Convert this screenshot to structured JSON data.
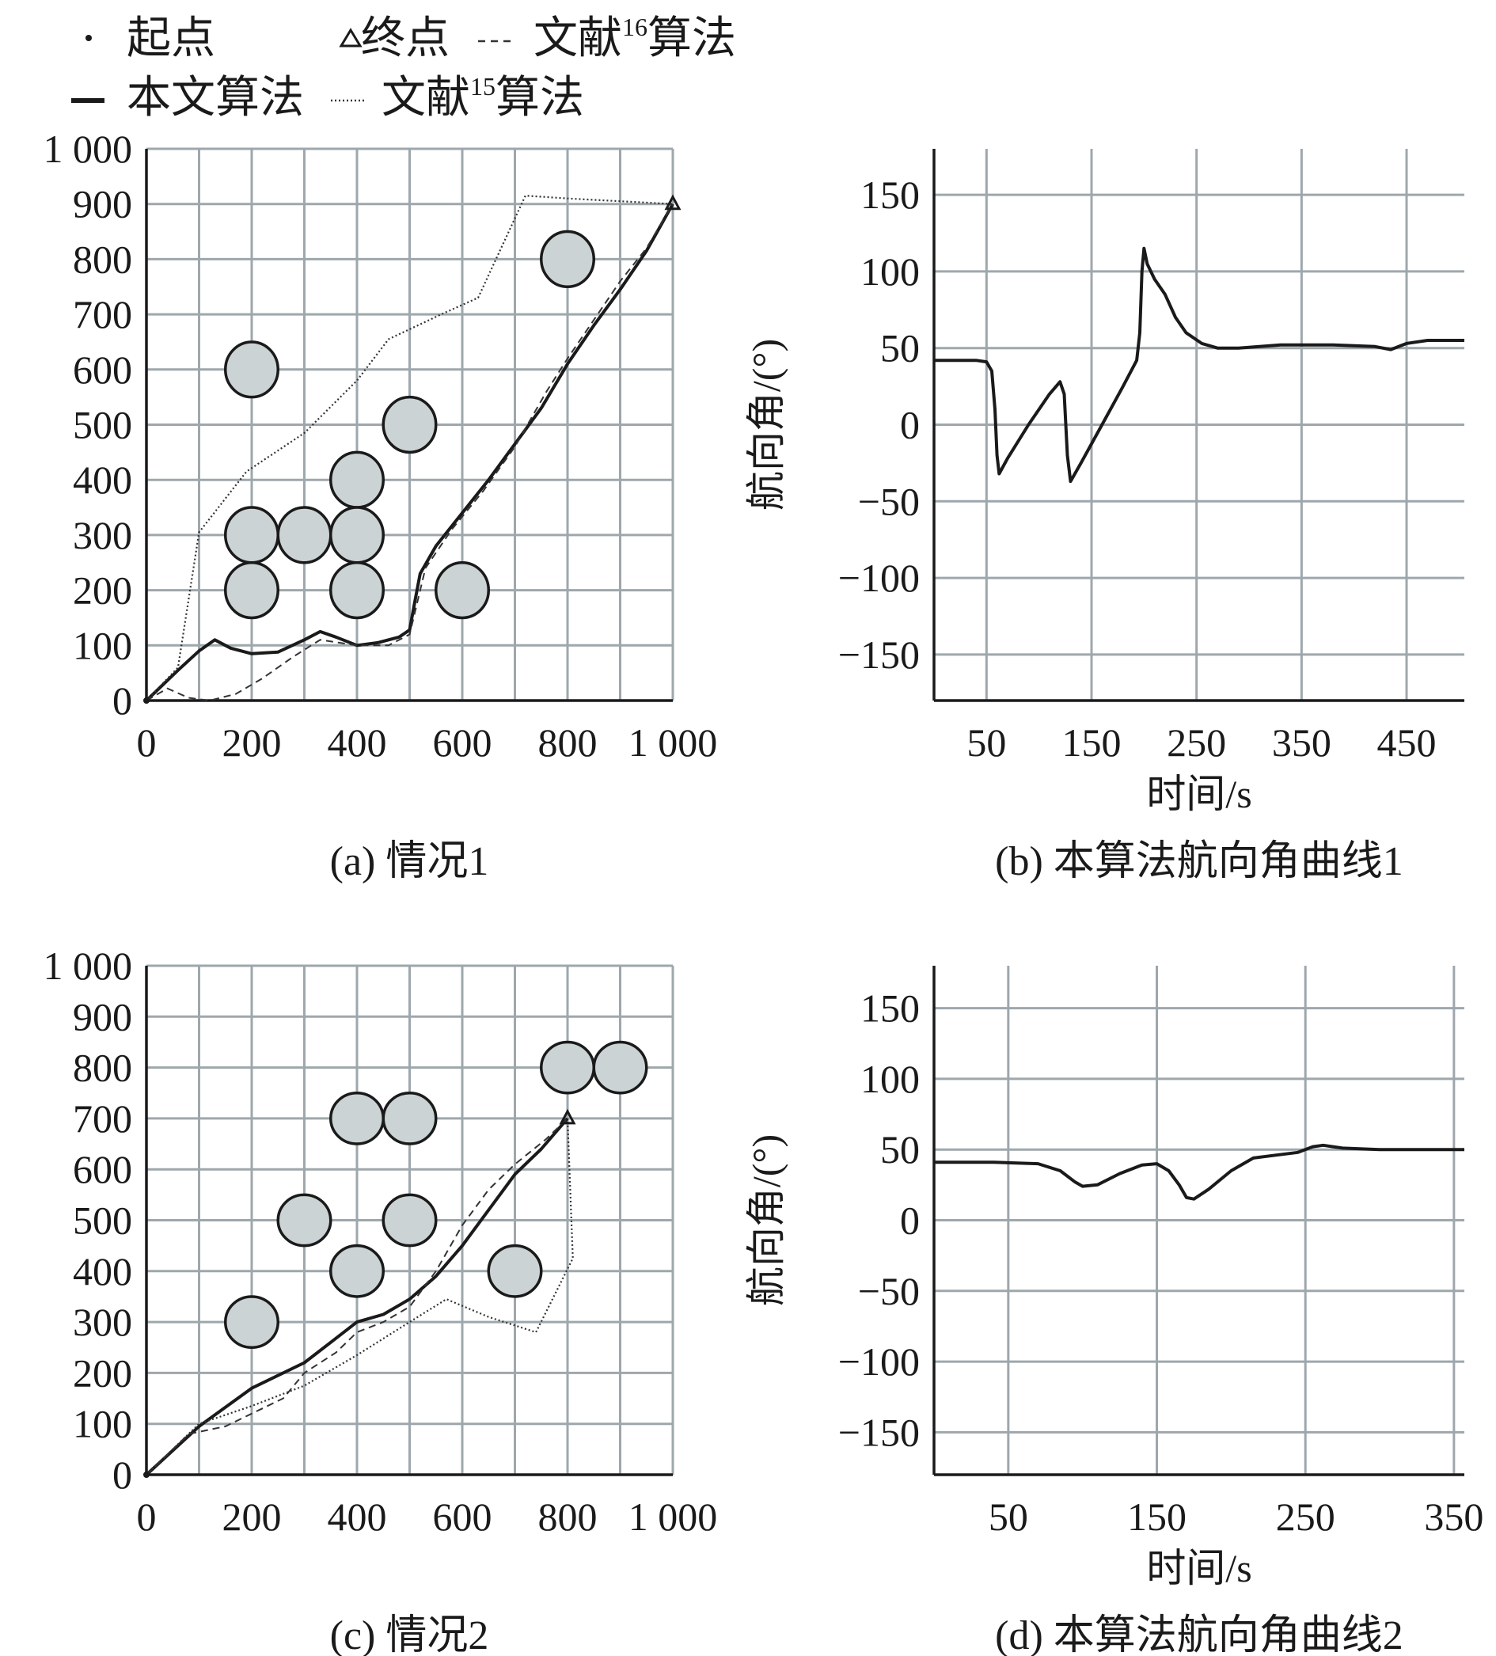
{
  "legend": {
    "start": "起点",
    "end": "终点",
    "ref16": "文献",
    "ref16_sup": "16",
    "ref16_tail": "算法",
    "ours": "本文算法",
    "ref15": "文献",
    "ref15_sup": "15",
    "ref15_tail": "算法"
  },
  "chart_data": [
    {
      "id": "a",
      "type": "line",
      "caption": "(a) 情况1",
      "xlim": [
        0,
        1000
      ],
      "ylim": [
        0,
        1000
      ],
      "x_ticks": [
        "0",
        "200",
        "400",
        "600",
        "800",
        "1 000"
      ],
      "y_ticks": [
        "0",
        "100",
        "200",
        "300",
        "400",
        "500",
        "600",
        "700",
        "800",
        "900",
        "1 000"
      ],
      "grid": true,
      "start": [
        0,
        0
      ],
      "end": [
        1000,
        900
      ],
      "obstacles": [
        [
          200,
          600
        ],
        [
          500,
          500
        ],
        [
          400,
          400
        ],
        [
          200,
          300
        ],
        [
          300,
          300
        ],
        [
          400,
          300
        ],
        [
          200,
          200
        ],
        [
          400,
          200
        ],
        [
          600,
          200
        ],
        [
          800,
          800
        ]
      ],
      "obstacle_radius": 50,
      "series": [
        {
          "name": "本文算法",
          "style": "solid",
          "points": [
            [
              0,
              0
            ],
            [
              60,
              55
            ],
            [
              100,
              90
            ],
            [
              130,
              110
            ],
            [
              160,
              95
            ],
            [
              200,
              85
            ],
            [
              250,
              88
            ],
            [
              300,
              110
            ],
            [
              330,
              125
            ],
            [
              360,
              115
            ],
            [
              400,
              100
            ],
            [
              440,
              105
            ],
            [
              480,
              115
            ],
            [
              500,
              128
            ],
            [
              510,
              180
            ],
            [
              520,
              230
            ],
            [
              550,
              280
            ],
            [
              600,
              340
            ],
            [
              650,
              400
            ],
            [
              700,
              465
            ],
            [
              750,
              530
            ],
            [
              800,
              610
            ],
            [
              850,
              680
            ],
            [
              900,
              745
            ],
            [
              950,
              815
            ],
            [
              1000,
              900
            ]
          ]
        },
        {
          "name": "文献16算法",
          "style": "dashed",
          "points": [
            [
              0,
              0
            ],
            [
              40,
              22
            ],
            [
              80,
              5
            ],
            [
              120,
              0
            ],
            [
              170,
              12
            ],
            [
              220,
              40
            ],
            [
              280,
              80
            ],
            [
              330,
              110
            ],
            [
              400,
              100
            ],
            [
              460,
              100
            ],
            [
              500,
              120
            ],
            [
              510,
              160
            ],
            [
              530,
              240
            ],
            [
              580,
              310
            ],
            [
              640,
              380
            ],
            [
              700,
              460
            ],
            [
              760,
              560
            ],
            [
              800,
              620
            ],
            [
              850,
              690
            ],
            [
              900,
              760
            ],
            [
              950,
              820
            ],
            [
              1000,
              900
            ]
          ]
        },
        {
          "name": "文献15算法",
          "style": "dotted",
          "points": [
            [
              0,
              0
            ],
            [
              60,
              60
            ],
            [
              100,
              305
            ],
            [
              190,
              415
            ],
            [
              300,
              485
            ],
            [
              400,
              580
            ],
            [
              460,
              655
            ],
            [
              560,
              700
            ],
            [
              630,
              730
            ],
            [
              720,
              915
            ],
            [
              800,
              910
            ],
            [
              1000,
              900
            ]
          ]
        }
      ]
    },
    {
      "id": "b",
      "type": "line",
      "caption": "(b) 本算法航向角曲线1",
      "xlabel": "时间/s",
      "ylabel": "航向角/(°)",
      "xlim": [
        0,
        505
      ],
      "ylim": [
        -180,
        180
      ],
      "x_ticks": [
        "50",
        "150",
        "250",
        "350",
        "450"
      ],
      "y_ticks": [
        "150",
        "100",
        "50",
        "0",
        "−50",
        "−100",
        "−150"
      ],
      "grid": true,
      "series": [
        {
          "name": "航向角",
          "points": [
            [
              0,
              42
            ],
            [
              40,
              42
            ],
            [
              50,
              41
            ],
            [
              55,
              35
            ],
            [
              58,
              10
            ],
            [
              60,
              -20
            ],
            [
              62,
              -32
            ],
            [
              70,
              -22
            ],
            [
              90,
              0
            ],
            [
              110,
              20
            ],
            [
              120,
              28
            ],
            [
              124,
              20
            ],
            [
              127,
              -20
            ],
            [
              130,
              -37
            ],
            [
              140,
              -25
            ],
            [
              160,
              0
            ],
            [
              180,
              25
            ],
            [
              193,
              42
            ],
            [
              196,
              60
            ],
            [
              198,
              100
            ],
            [
              200,
              115
            ],
            [
              203,
              105
            ],
            [
              210,
              95
            ],
            [
              220,
              85
            ],
            [
              230,
              70
            ],
            [
              240,
              60
            ],
            [
              255,
              53
            ],
            [
              270,
              50
            ],
            [
              290,
              50
            ],
            [
              330,
              52
            ],
            [
              380,
              52
            ],
            [
              420,
              51
            ],
            [
              435,
              49
            ],
            [
              450,
              53
            ],
            [
              470,
              55
            ],
            [
              505,
              55
            ]
          ]
        }
      ]
    },
    {
      "id": "c",
      "type": "line",
      "caption": "(c) 情况2",
      "xlim": [
        0,
        1000
      ],
      "ylim": [
        0,
        1000
      ],
      "x_ticks": [
        "0",
        "200",
        "400",
        "600",
        "800",
        "1 000"
      ],
      "y_ticks": [
        "0",
        "100",
        "200",
        "300",
        "400",
        "500",
        "600",
        "700",
        "800",
        "900",
        "1 000"
      ],
      "grid": true,
      "start": [
        0,
        0
      ],
      "end": [
        800,
        700
      ],
      "obstacles": [
        [
          800,
          800
        ],
        [
          900,
          800
        ],
        [
          400,
          700
        ],
        [
          500,
          700
        ],
        [
          300,
          500
        ],
        [
          500,
          500
        ],
        [
          400,
          400
        ],
        [
          700,
          400
        ],
        [
          200,
          300
        ]
      ],
      "obstacle_radius": 50,
      "series": [
        {
          "name": "本文算法",
          "style": "solid",
          "points": [
            [
              0,
              0
            ],
            [
              100,
              95
            ],
            [
              200,
              170
            ],
            [
              300,
              220
            ],
            [
              350,
              260
            ],
            [
              400,
              300
            ],
            [
              450,
              315
            ],
            [
              500,
              345
            ],
            [
              550,
              390
            ],
            [
              600,
              450
            ],
            [
              650,
              520
            ],
            [
              700,
              590
            ],
            [
              750,
              640
            ],
            [
              800,
              700
            ]
          ]
        },
        {
          "name": "文献16算法",
          "style": "dashed",
          "points": [
            [
              0,
              0
            ],
            [
              80,
              80
            ],
            [
              150,
              95
            ],
            [
              200,
              120
            ],
            [
              260,
              150
            ],
            [
              300,
              200
            ],
            [
              360,
              240
            ],
            [
              400,
              280
            ],
            [
              450,
              300
            ],
            [
              500,
              330
            ],
            [
              550,
              400
            ],
            [
              600,
              490
            ],
            [
              650,
              560
            ],
            [
              700,
              610
            ],
            [
              760,
              660
            ],
            [
              800,
              700
            ]
          ]
        },
        {
          "name": "文献15算法",
          "style": "dotted",
          "points": [
            [
              0,
              0
            ],
            [
              100,
              100
            ],
            [
              200,
              135
            ],
            [
              300,
              175
            ],
            [
              400,
              235
            ],
            [
              500,
              300
            ],
            [
              570,
              345
            ],
            [
              650,
              310
            ],
            [
              740,
              280
            ],
            [
              810,
              425
            ],
            [
              800,
              700
            ]
          ]
        }
      ]
    },
    {
      "id": "d",
      "type": "line",
      "caption": "(d) 本算法航向角曲线2",
      "xlabel": "时间/s",
      "ylabel": "航向角/(°)",
      "xlim": [
        0,
        357
      ],
      "ylim": [
        -180,
        180
      ],
      "x_ticks": [
        "50",
        "150",
        "250",
        "350"
      ],
      "y_ticks": [
        "150",
        "100",
        "50",
        "0",
        "−50",
        "−100",
        "−150"
      ],
      "grid": true,
      "series": [
        {
          "name": "航向角",
          "points": [
            [
              0,
              41
            ],
            [
              40,
              41
            ],
            [
              70,
              40
            ],
            [
              85,
              35
            ],
            [
              95,
              27
            ],
            [
              100,
              24
            ],
            [
              110,
              25
            ],
            [
              125,
              33
            ],
            [
              140,
              39
            ],
            [
              150,
              40
            ],
            [
              158,
              35
            ],
            [
              165,
              25
            ],
            [
              170,
              16
            ],
            [
              175,
              15
            ],
            [
              185,
              22
            ],
            [
              200,
              35
            ],
            [
              215,
              44
            ],
            [
              230,
              46
            ],
            [
              245,
              48
            ],
            [
              255,
              52
            ],
            [
              262,
              53
            ],
            [
              275,
              51
            ],
            [
              300,
              50
            ],
            [
              357,
              50
            ]
          ]
        }
      ]
    }
  ]
}
